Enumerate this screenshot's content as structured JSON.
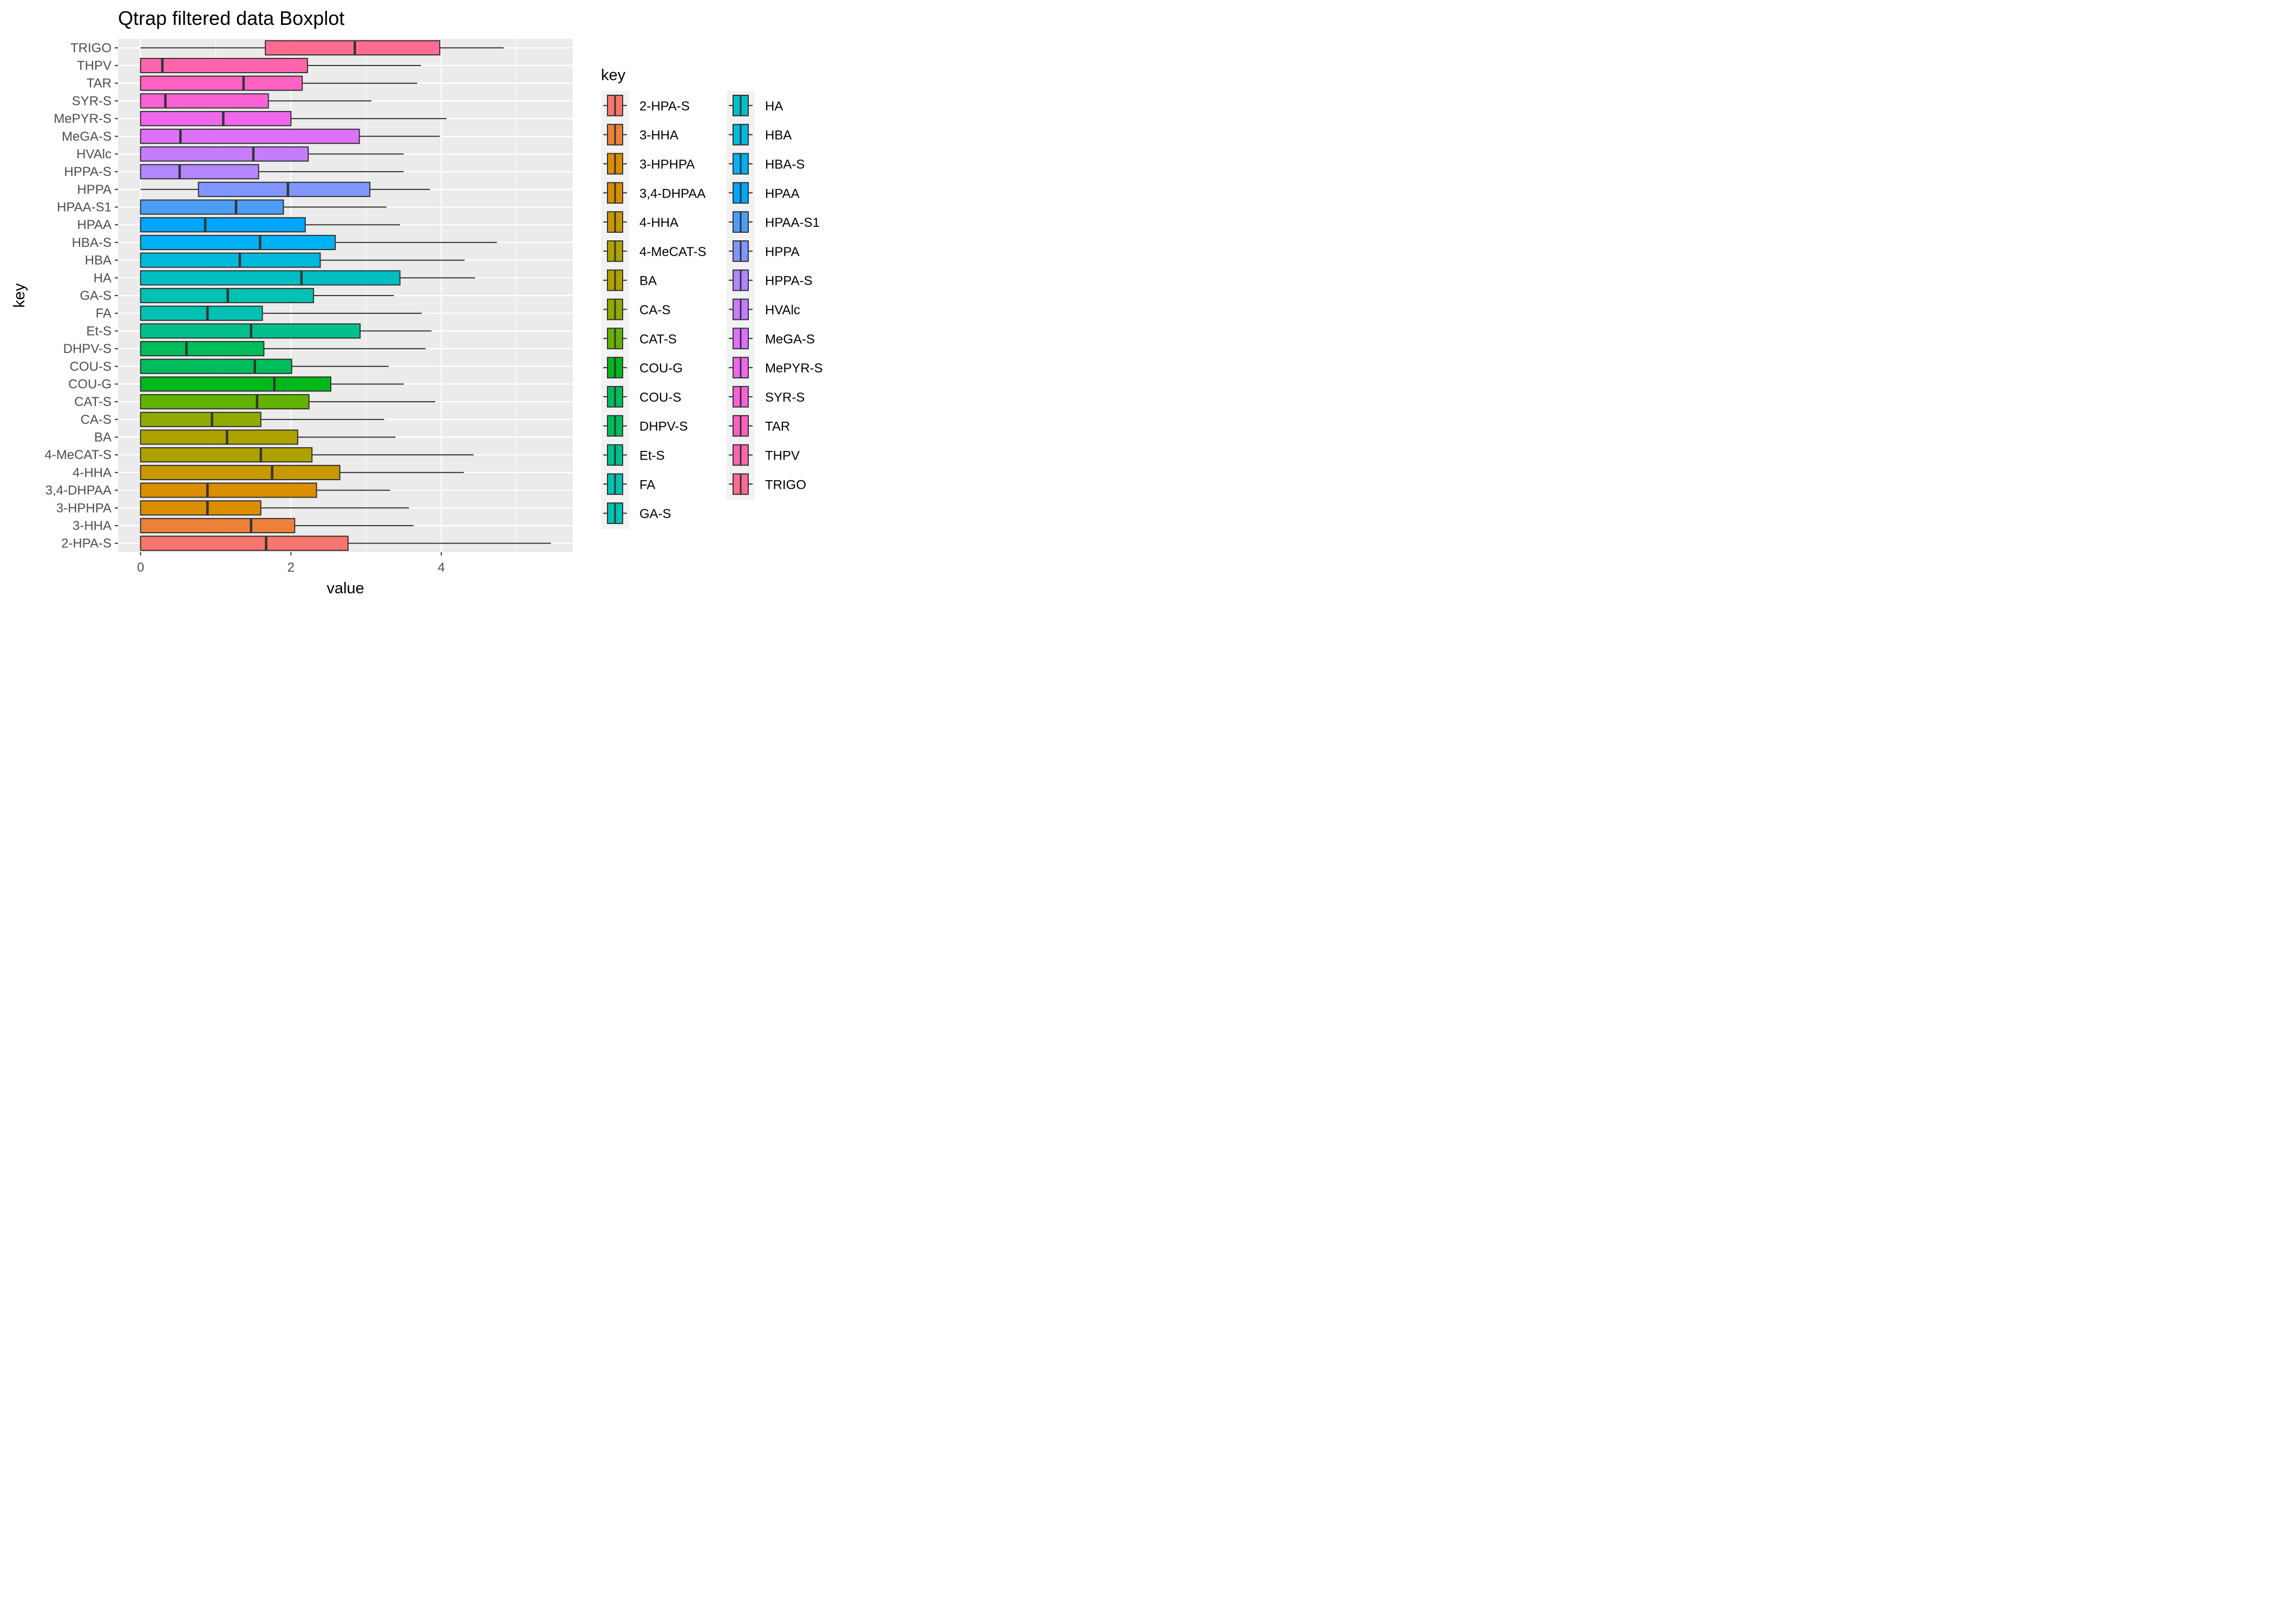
{
  "chart_data": {
    "type": "boxplot",
    "orientation": "horizontal",
    "title": "Qtrap filtered data Boxplot",
    "xlabel": "value",
    "ylabel": "key",
    "xlim": [
      -0.3,
      5.75
    ],
    "xticks": [
      0,
      2,
      4
    ],
    "grid": true,
    "legend": {
      "title": "key",
      "position": "right",
      "columns": 2
    },
    "categories": [
      "2-HPA-S",
      "3-HHA",
      "3-HPHPA",
      "3,4-DHPAA",
      "4-HHA",
      "4-MeCAT-S",
      "BA",
      "CA-S",
      "CAT-S",
      "COU-G",
      "COU-S",
      "DHPV-S",
      "Et-S",
      "FA",
      "GA-S",
      "HA",
      "HBA",
      "HBA-S",
      "HPAA",
      "HPAA-S1",
      "HPPA",
      "HPPA-S",
      "HVAlc",
      "MeGA-S",
      "MePYR-S",
      "SYR-S",
      "TAR",
      "THPV",
      "TRIGO"
    ],
    "series": [
      {
        "name": "2-HPA-S",
        "color": "#F8766D",
        "min": 0,
        "q1": 0,
        "median": 1.67,
        "q3": 2.76,
        "max": 5.46
      },
      {
        "name": "3-HHA",
        "color": "#EC8239",
        "min": 0,
        "q1": 0,
        "median": 1.47,
        "q3": 2.05,
        "max": 3.63
      },
      {
        "name": "3-HPHPA",
        "color": "#DB8E00",
        "min": 0,
        "q1": 0,
        "median": 0.89,
        "q3": 1.6,
        "max": 3.57
      },
      {
        "name": "3,4-DHPAA",
        "color": "#DB8E00",
        "min": 0,
        "q1": 0,
        "median": 0.89,
        "q3": 2.34,
        "max": 3.32
      },
      {
        "name": "4-HHA",
        "color": "#C79800",
        "min": 0,
        "q1": 0,
        "median": 1.75,
        "q3": 2.65,
        "max": 4.3
      },
      {
        "name": "4-MeCAT-S",
        "color": "#AEA200",
        "min": 0,
        "q1": 0,
        "median": 1.6,
        "q3": 2.28,
        "max": 4.43
      },
      {
        "name": "BA",
        "color": "#AEA200",
        "min": 0,
        "q1": 0,
        "median": 1.15,
        "q3": 2.09,
        "max": 3.39
      },
      {
        "name": "CA-S",
        "color": "#8FAA00",
        "min": 0,
        "q1": 0,
        "median": 0.95,
        "q3": 1.6,
        "max": 3.24
      },
      {
        "name": "CAT-S",
        "color": "#64B200",
        "min": 0,
        "q1": 0,
        "median": 1.55,
        "q3": 2.24,
        "max": 3.92
      },
      {
        "name": "COU-G",
        "color": "#00B81B",
        "min": 0,
        "q1": 0,
        "median": 1.78,
        "q3": 2.53,
        "max": 3.5
      },
      {
        "name": "COU-S",
        "color": "#00BD5C",
        "min": 0,
        "q1": 0,
        "median": 1.52,
        "q3": 2.01,
        "max": 3.3
      },
      {
        "name": "DHPV-S",
        "color": "#00BD5C",
        "min": 0,
        "q1": 0,
        "median": 0.61,
        "q3": 1.64,
        "max": 3.79
      },
      {
        "name": "Et-S",
        "color": "#00C08E",
        "min": 0,
        "q1": 0,
        "median": 1.47,
        "q3": 2.92,
        "max": 3.87
      },
      {
        "name": "FA",
        "color": "#00C1B2",
        "min": 0,
        "q1": 0,
        "median": 0.89,
        "q3": 1.62,
        "max": 3.74
      },
      {
        "name": "GA-S",
        "color": "#00C1B2",
        "min": 0,
        "q1": 0,
        "median": 1.16,
        "q3": 2.3,
        "max": 3.37
      },
      {
        "name": "HA",
        "color": "#00BFC4",
        "min": 0,
        "q1": 0,
        "median": 2.14,
        "q3": 3.45,
        "max": 4.45
      },
      {
        "name": "HBA",
        "color": "#00BADE",
        "min": 0,
        "q1": 0,
        "median": 1.32,
        "q3": 2.39,
        "max": 4.31
      },
      {
        "name": "HBA-S",
        "color": "#00B2F3",
        "min": 0,
        "q1": 0,
        "median": 1.59,
        "q3": 2.59,
        "max": 4.74
      },
      {
        "name": "HPAA",
        "color": "#00A6FF",
        "min": 0,
        "q1": 0,
        "median": 0.86,
        "q3": 2.19,
        "max": 3.45
      },
      {
        "name": "HPAA-S1",
        "color": "#4C9EF5",
        "min": 0,
        "q1": 0,
        "median": 1.27,
        "q3": 1.9,
        "max": 3.27
      },
      {
        "name": "HPPA",
        "color": "#7F96FF",
        "min": 0,
        "q1": 0.77,
        "median": 1.96,
        "q3": 3.05,
        "max": 3.85
      },
      {
        "name": "HPPA-S",
        "color": "#B385FF",
        "min": 0,
        "q1": 0,
        "median": 0.52,
        "q3": 1.57,
        "max": 3.5
      },
      {
        "name": "HVAlc",
        "color": "#C77CFF",
        "min": 0,
        "q1": 0,
        "median": 1.5,
        "q3": 2.23,
        "max": 3.5
      },
      {
        "name": "MeGA-S",
        "color": "#DD71FA",
        "min": 0,
        "q1": 0,
        "median": 0.53,
        "q3": 2.91,
        "max": 3.98
      },
      {
        "name": "MePYR-S",
        "color": "#EF67EB",
        "min": 0,
        "q1": 0,
        "median": 1.1,
        "q3": 2.0,
        "max": 4.07
      },
      {
        "name": "SYR-S",
        "color": "#FB61D7",
        "min": 0,
        "q1": 0,
        "median": 0.33,
        "q3": 1.7,
        "max": 3.07
      },
      {
        "name": "TAR",
        "color": "#FF61C3",
        "min": 0,
        "q1": 0,
        "median": 1.37,
        "q3": 2.15,
        "max": 3.68
      },
      {
        "name": "THPV",
        "color": "#FF65AC",
        "min": 0,
        "q1": 0,
        "median": 0.29,
        "q3": 2.22,
        "max": 3.73
      },
      {
        "name": "TRIGO",
        "color": "#FF6C91",
        "min": 0,
        "q1": 1.66,
        "median": 2.85,
        "q3": 3.98,
        "max": 4.83
      }
    ]
  }
}
